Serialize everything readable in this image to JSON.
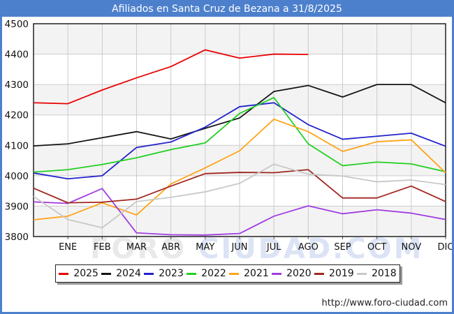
{
  "title": "Afiliados en Santa Cruz de Bezana a 31/8/2025",
  "watermark": {
    "part1": "FORO",
    "part2": "CIUDAD.COM"
  },
  "footer_url": "http://www.foro-ciudad.com",
  "colors": {
    "frame_blue": "#4d80cc",
    "titlebar_text": "#ffffff",
    "plot_band_gray": "#f3f3f3",
    "gridline": "#cccccc",
    "plot_border": "#222222",
    "axis_text": "#111111"
  },
  "chart_data": {
    "type": "line",
    "title": "Afiliados en Santa Cruz de Bezana a 31/8/2025",
    "xlabel": "",
    "ylabel": "",
    "ylim": [
      3800,
      4500
    ],
    "y_tick_labels": [
      "4500",
      "4400",
      "4300",
      "4200",
      "4100",
      "4000",
      "3900",
      "3800"
    ],
    "categories": [
      "ENE",
      "FEB",
      "MAR",
      "ABR",
      "MAY",
      "JUN",
      "JUL",
      "AGO",
      "SEP",
      "OCT",
      "NOV",
      "DIC"
    ],
    "note": "13 x-positions: first value sits on the left plot edge, the remaining 12 on the month gridlines. 2025 runs only through AGO (31/8/2025).",
    "grid": true,
    "legend_position": "bottom",
    "series": [
      {
        "name": "2025",
        "color": "#e80000",
        "values": [
          4240,
          4237,
          4282,
          4322,
          4359,
          4414,
          4387,
          4400,
          4399
        ]
      },
      {
        "name": "2024",
        "color": "#141414",
        "values": [
          4098,
          4105,
          4125,
          4145,
          4121,
          4156,
          4190,
          4277,
          4297,
          4259,
          4300,
          4300,
          4240
        ]
      },
      {
        "name": "2023",
        "color": "#2222cc",
        "values": [
          4009,
          3990,
          4000,
          4093,
          4111,
          4160,
          4227,
          4240,
          4168,
          4120,
          4130,
          4140,
          4097
        ]
      },
      {
        "name": "2022",
        "color": "#20d020",
        "values": [
          4012,
          4020,
          4037,
          4059,
          4086,
          4108,
          4205,
          4257,
          4105,
          4033,
          4045,
          4039,
          4013
        ]
      },
      {
        "name": "2021",
        "color": "#ffa318",
        "values": [
          3855,
          3867,
          3911,
          3871,
          3973,
          4026,
          4082,
          4186,
          4145,
          4080,
          4112,
          4118,
          4010
        ]
      },
      {
        "name": "2020",
        "color": "#a03ee0",
        "values": [
          3914,
          3909,
          3958,
          3812,
          3806,
          3805,
          3810,
          3867,
          3901,
          3875,
          3888,
          3877,
          3856
        ]
      },
      {
        "name": "2019",
        "color": "#a02820",
        "values": [
          3959,
          3911,
          3913,
          3923,
          3966,
          4007,
          4011,
          4010,
          4020,
          3927,
          3927,
          3966,
          3915
        ]
      },
      {
        "name": "2018",
        "color": "#c8c8c8",
        "values": [
          3932,
          3856,
          3829,
          3915,
          3929,
          3947,
          3975,
          4038,
          4005,
          3999,
          3980,
          3986,
          3971
        ]
      }
    ]
  }
}
